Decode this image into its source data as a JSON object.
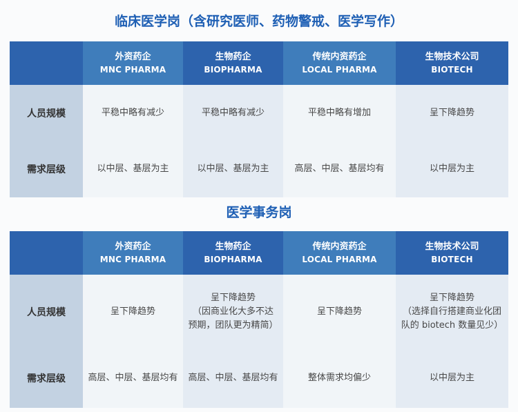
{
  "colors": {
    "page_bg": "#fafbfc",
    "title_blue": "#1e5fb4",
    "header_dark_blue": "#2d63ad",
    "header_light_blue": "#3f7dbb",
    "row_label_bg": "#c3d2e2",
    "cell_bg_light": "#f1f5f8",
    "cell_bg_shaded": "#e4ebf3"
  },
  "tables": [
    {
      "title": "临床医学岗（含研究医师、药物警戒、医学写作）",
      "columns": [
        {
          "cn": "外资药企",
          "en": "MNC PHARMA"
        },
        {
          "cn": "生物药企",
          "en": "BIOPHARMA"
        },
        {
          "cn": "传统内资药企",
          "en": "LOCAL PHARMA"
        },
        {
          "cn": "生物技术公司",
          "en": "BIOTECH"
        }
      ],
      "rows": [
        {
          "label": "人员规模",
          "cells": [
            "平稳中略有减少",
            "平稳中略有减少",
            "平稳中略有增加",
            "呈下降趋势"
          ]
        },
        {
          "label": "需求层级",
          "cells": [
            "以中层、基层为主",
            "以中层、基层为主",
            "高层、中层、基层均有",
            "以中层为主"
          ]
        }
      ]
    },
    {
      "title": "医学事务岗",
      "columns": [
        {
          "cn": "外资药企",
          "en": "MNC PHARMA"
        },
        {
          "cn": "生物药企",
          "en": "BIOPHARMA"
        },
        {
          "cn": "传统内资药企",
          "en": "LOCAL PHARMA"
        },
        {
          "cn": "生物技术公司",
          "en": "BIOTECH"
        }
      ],
      "rows": [
        {
          "label": "人员规模",
          "cells": [
            "呈下降趋势",
            "呈下降趋势\n（因商业化大多不达\n预期，团队更为精简）",
            "呈下降趋势",
            "呈下降趋势\n（选择自行搭建商业化团\n队的 biotech 数量见少）"
          ]
        },
        {
          "label": "需求层级",
          "cells": [
            "高层、中层、基层均有",
            "高层、中层、基层均有",
            "整体需求均偏少",
            "以中层为主"
          ]
        }
      ]
    }
  ]
}
